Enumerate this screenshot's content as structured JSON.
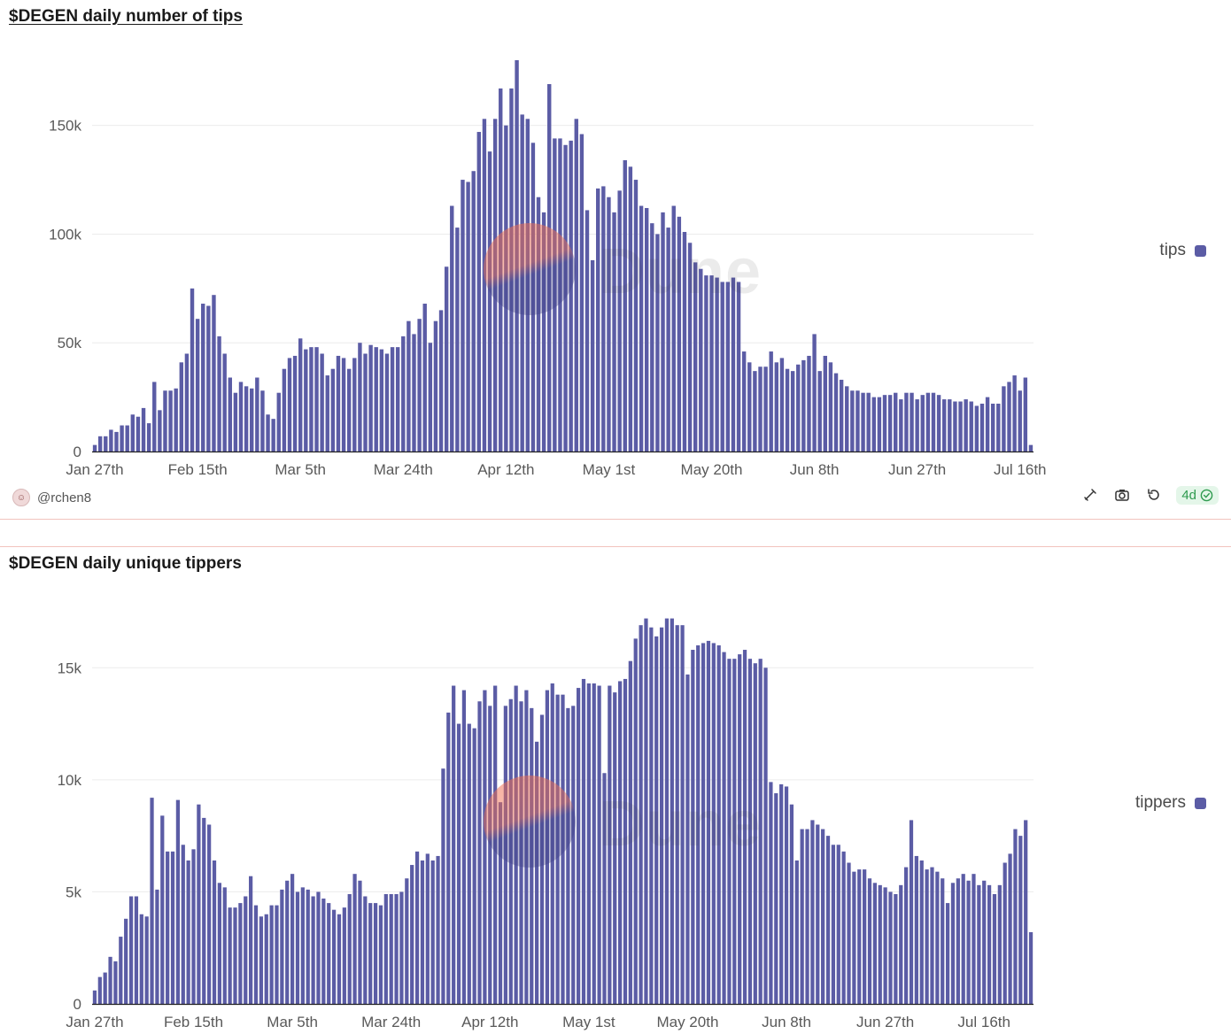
{
  "charts": [
    {
      "title": "$DEGEN daily number of tips",
      "legend": {
        "label": "tips",
        "color": "#5b5ca5"
      },
      "author": "@rchen8",
      "badge": "4d"
    },
    {
      "title": "$DEGEN daily unique tippers",
      "legend": {
        "label": "tippers",
        "color": "#5b5ca5"
      }
    }
  ],
  "watermark": "Dune",
  "colors": {
    "bar": "#5b5ca5",
    "grid": "#ececec",
    "axis": "#222222",
    "divider": "#f2c3bd",
    "badge_text": "#2e9a4e"
  },
  "icons": [
    "share-icon",
    "camera-icon",
    "refresh-icon",
    "check-circle-icon"
  ],
  "chart_data": [
    {
      "type": "bar",
      "title": "$DEGEN daily number of tips",
      "series_name": "tips",
      "start_date": "Jan 27th",
      "xlabel": "",
      "ylabel": "",
      "ylim": [
        0,
        180000
      ],
      "yticks": [
        0,
        50000,
        100000,
        150000
      ],
      "ytick_labels": [
        "0",
        "50k",
        "100k",
        "150k"
      ],
      "xticks": [
        {
          "index": 0,
          "label": "Jan 27th"
        },
        {
          "index": 19,
          "label": "Feb 15th"
        },
        {
          "index": 38,
          "label": "Mar 5th"
        },
        {
          "index": 57,
          "label": "Mar 24th"
        },
        {
          "index": 76,
          "label": "Apr 12th"
        },
        {
          "index": 95,
          "label": "May 1st"
        },
        {
          "index": 114,
          "label": "May 20th"
        },
        {
          "index": 133,
          "label": "Jun 8th"
        },
        {
          "index": 152,
          "label": "Jun 27th"
        },
        {
          "index": 171,
          "label": "Jul 16th"
        }
      ],
      "values": [
        3000,
        7000,
        7000,
        10000,
        9000,
        12000,
        12000,
        17000,
        16000,
        20000,
        13000,
        32000,
        19000,
        28000,
        28000,
        29000,
        41000,
        45000,
        75000,
        61000,
        68000,
        67000,
        72000,
        53000,
        45000,
        34000,
        27000,
        32000,
        30000,
        29000,
        34000,
        28000,
        17000,
        15000,
        27000,
        38000,
        43000,
        44000,
        52000,
        47000,
        48000,
        48000,
        45000,
        35000,
        38000,
        44000,
        43000,
        38000,
        43000,
        50000,
        45000,
        49000,
        48000,
        47000,
        45000,
        48000,
        48000,
        53000,
        60000,
        54000,
        61000,
        68000,
        50000,
        60000,
        65000,
        85000,
        113000,
        103000,
        125000,
        124000,
        129000,
        147000,
        153000,
        138000,
        153000,
        167000,
        150000,
        167000,
        180000,
        155000,
        153000,
        142000,
        117000,
        110000,
        169000,
        144000,
        144000,
        141000,
        143000,
        153000,
        146000,
        111000,
        88000,
        121000,
        122000,
        117000,
        110000,
        120000,
        134000,
        131000,
        125000,
        113000,
        112000,
        105000,
        100000,
        110000,
        103000,
        113000,
        108000,
        101000,
        96000,
        87000,
        84000,
        81000,
        81000,
        80000,
        78000,
        78000,
        80000,
        78000,
        46000,
        41000,
        37000,
        39000,
        39000,
        46000,
        41000,
        43000,
        38000,
        37000,
        40000,
        42000,
        44000,
        54000,
        37000,
        44000,
        41000,
        36000,
        33000,
        30000,
        28000,
        28000,
        27000,
        27000,
        25000,
        25000,
        26000,
        26000,
        27000,
        24000,
        27000,
        27000,
        24000,
        26000,
        27000,
        27000,
        26000,
        24000,
        24000,
        23000,
        23000,
        24000,
        23000,
        21000,
        22000,
        25000,
        22000,
        22000,
        30000,
        32000,
        35000,
        28000,
        34000,
        3000
      ]
    },
    {
      "type": "bar",
      "title": "$DEGEN daily unique tippers",
      "series_name": "tippers",
      "start_date": "Jan 27th",
      "xlabel": "",
      "ylabel": "",
      "ylim": [
        0,
        17500
      ],
      "yticks": [
        0,
        5000,
        10000,
        15000
      ],
      "ytick_labels": [
        "0",
        "5k",
        "10k",
        "15k"
      ],
      "xticks": [
        {
          "index": 0,
          "label": "Jan 27th"
        },
        {
          "index": 19,
          "label": "Feb 15th"
        },
        {
          "index": 38,
          "label": "Mar 5th"
        },
        {
          "index": 57,
          "label": "Mar 24th"
        },
        {
          "index": 76,
          "label": "Apr 12th"
        },
        {
          "index": 95,
          "label": "May 1st"
        },
        {
          "index": 114,
          "label": "May 20th"
        },
        {
          "index": 133,
          "label": "Jun 8th"
        },
        {
          "index": 152,
          "label": "Jun 27th"
        },
        {
          "index": 171,
          "label": "Jul 16th"
        }
      ],
      "values": [
        600,
        1200,
        1400,
        2100,
        1900,
        3000,
        3800,
        4800,
        4800,
        4000,
        3900,
        9200,
        5100,
        8400,
        6800,
        6800,
        9100,
        7100,
        6400,
        6900,
        8900,
        8300,
        8000,
        6400,
        5400,
        5200,
        4300,
        4300,
        4500,
        4800,
        5700,
        4400,
        3900,
        4000,
        4400,
        4400,
        5100,
        5500,
        5800,
        5000,
        5200,
        5100,
        4800,
        5000,
        4700,
        4500,
        4200,
        4000,
        4300,
        4900,
        5800,
        5500,
        4800,
        4500,
        4500,
        4400,
        4900,
        4900,
        4900,
        5000,
        5600,
        6200,
        6800,
        6400,
        6700,
        6400,
        6600,
        10500,
        13000,
        14200,
        12500,
        14000,
        12500,
        12300,
        13500,
        14000,
        13300,
        14200,
        9000,
        13300,
        13600,
        14200,
        13500,
        14000,
        13200,
        11700,
        12900,
        14000,
        14300,
        13800,
        13800,
        13200,
        13300,
        14100,
        14500,
        14300,
        14300,
        14200,
        10300,
        14200,
        13900,
        14400,
        14500,
        15300,
        16300,
        16900,
        17200,
        16800,
        16400,
        16800,
        17200,
        17200,
        16900,
        16900,
        14700,
        15800,
        16000,
        16100,
        16200,
        16100,
        16000,
        15700,
        15400,
        15400,
        15600,
        15800,
        15400,
        15200,
        15400,
        15000,
        9900,
        9400,
        9800,
        9700,
        8900,
        6400,
        7800,
        7800,
        8200,
        8000,
        7800,
        7500,
        7100,
        7100,
        6800,
        6300,
        5900,
        6000,
        6000,
        5600,
        5400,
        5300,
        5200,
        5000,
        4900,
        5300,
        6100,
        8200,
        6600,
        6400,
        6000,
        6100,
        5900,
        5600,
        4500,
        5400,
        5600,
        5800,
        5500,
        5800,
        5300,
        5500,
        5300,
        4900,
        5300,
        6300,
        6700,
        7800,
        7500,
        8200,
        3200
      ]
    }
  ]
}
